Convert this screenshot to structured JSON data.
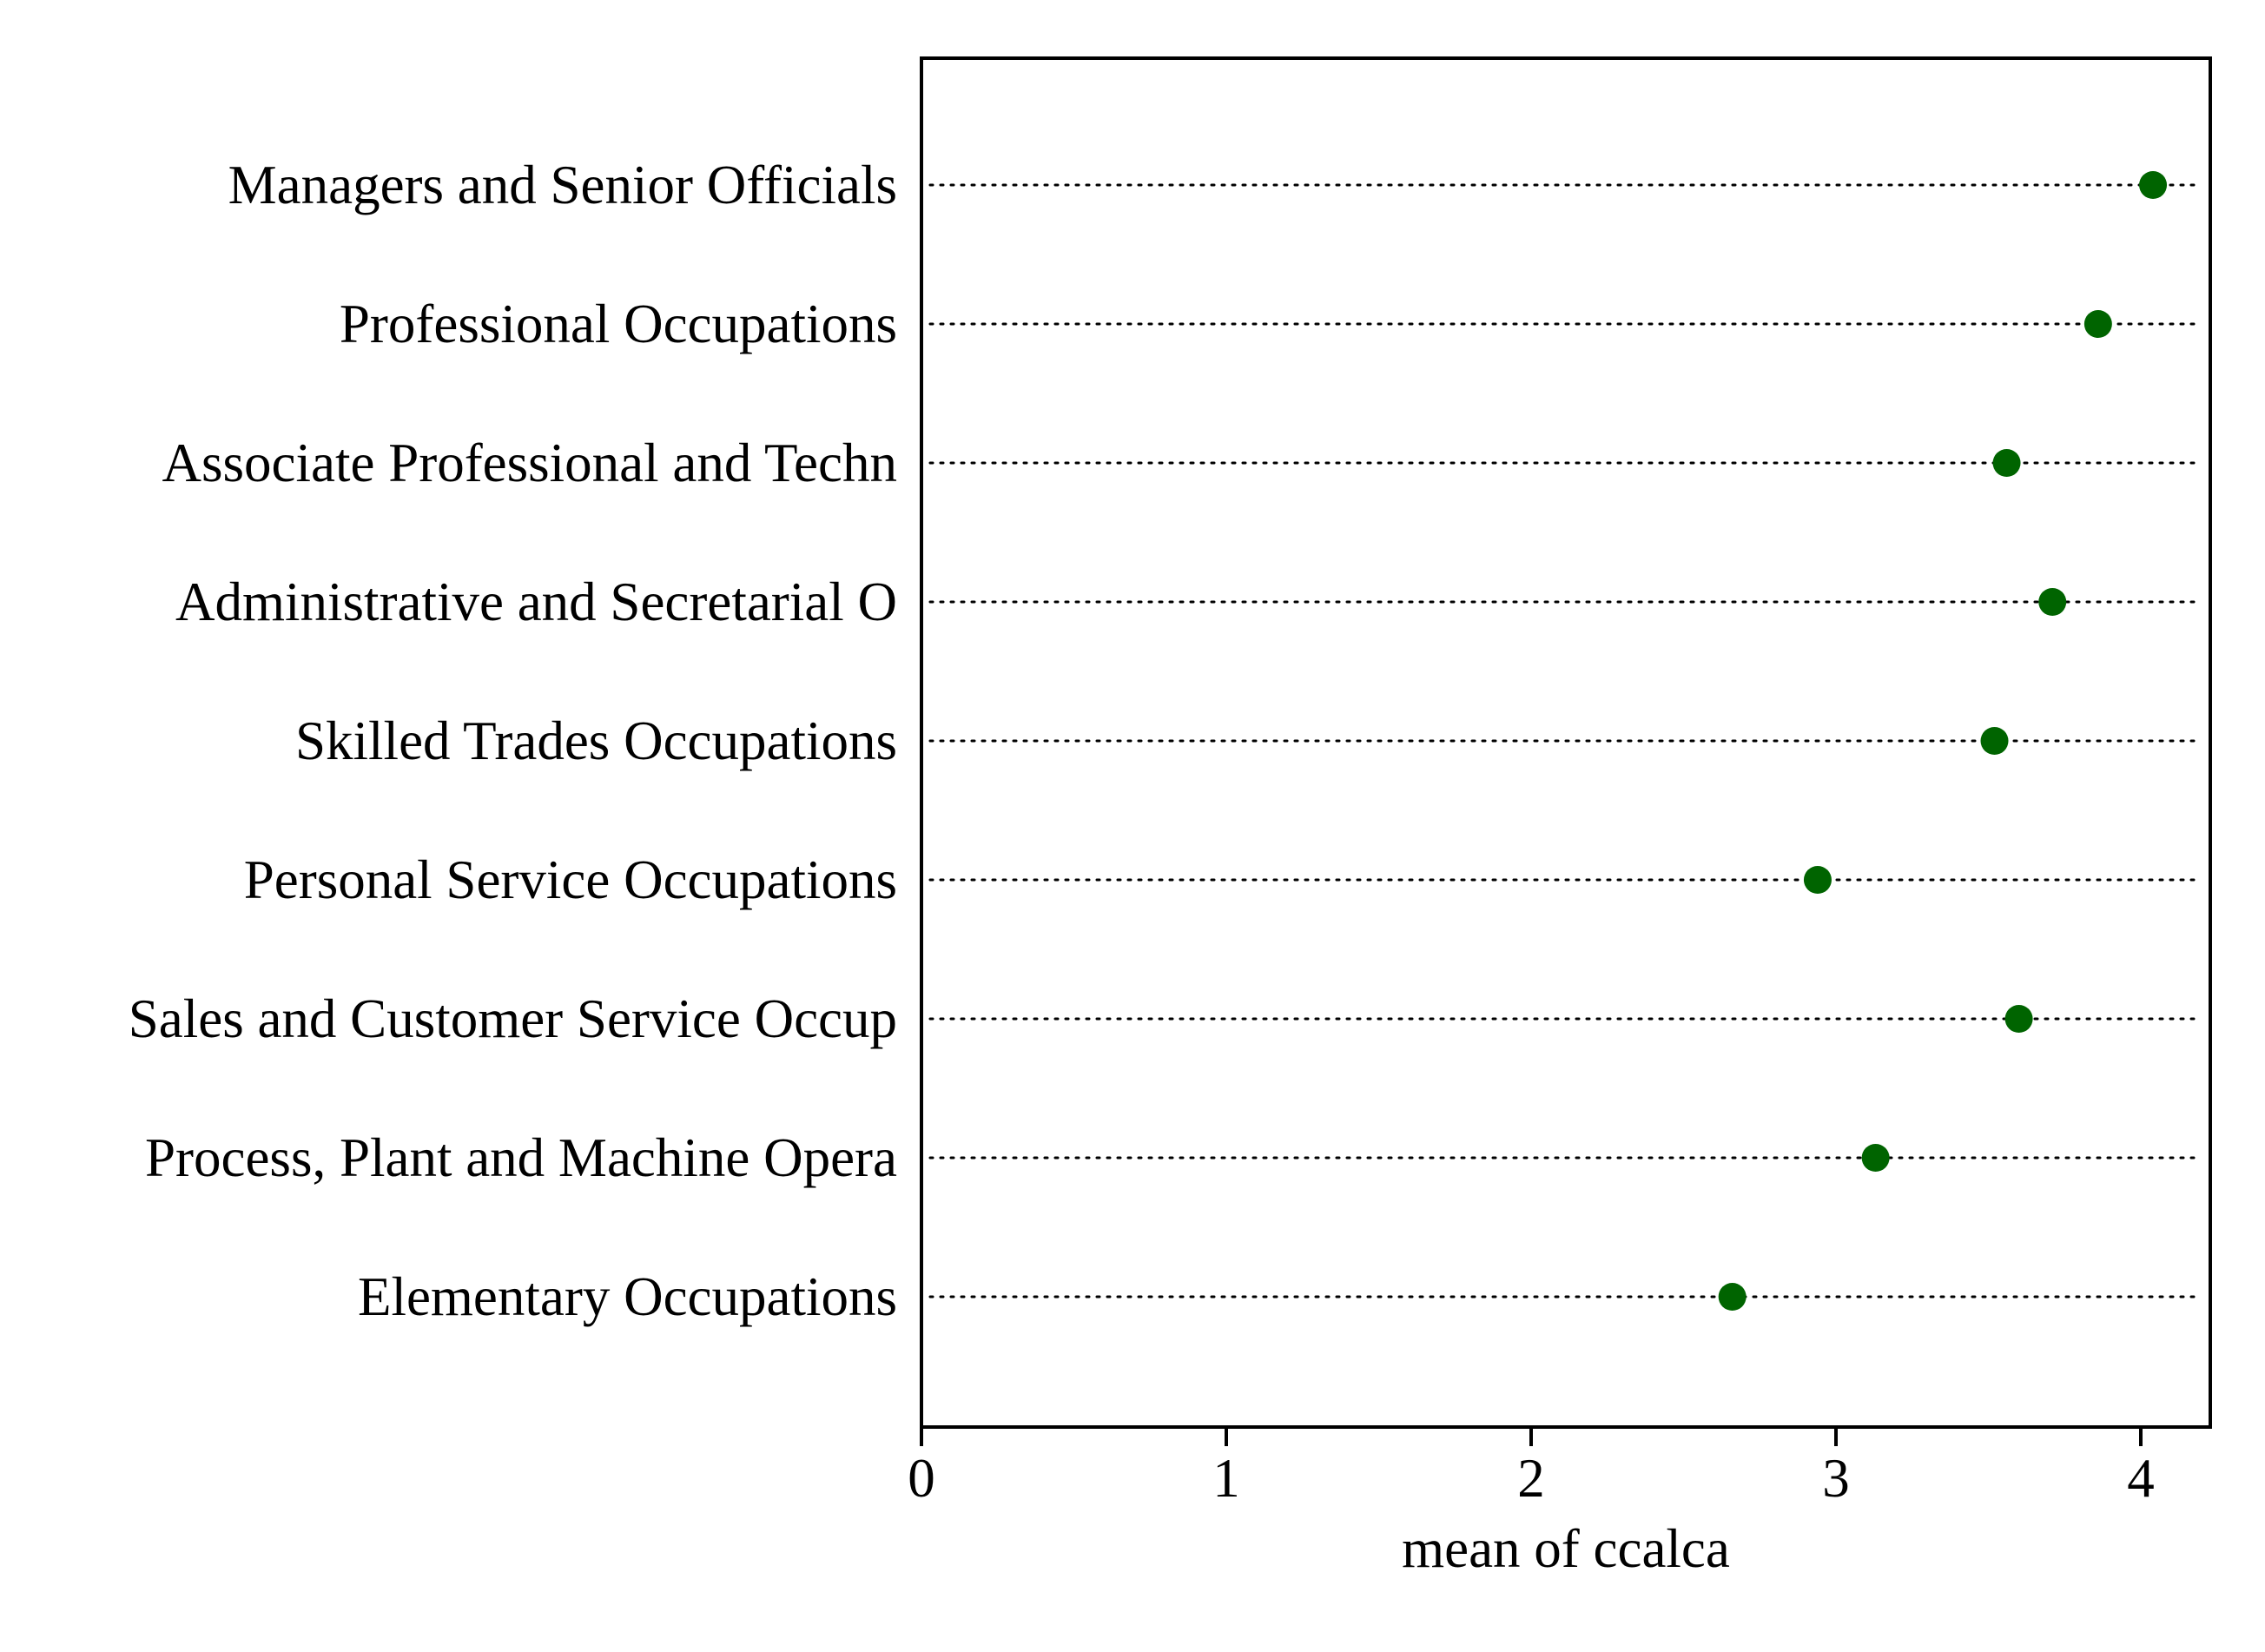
{
  "chart_data": {
    "type": "dot",
    "title": "",
    "xlabel": "mean of ccalca",
    "ylabel": "",
    "xlim": [
      0,
      4.23
    ],
    "xticks": [
      "0",
      "1",
      "2",
      "3",
      "4"
    ],
    "grid": false,
    "legend": "none",
    "categories": [
      "Managers and Senior Officials",
      "Professional Occupations",
      "Associate Professional and Techn",
      "Administrative and Secretarial O",
      "Skilled Trades Occupations",
      "Personal Service Occupations",
      "Sales and Customer Service Occup",
      "Process, Plant and Machine Opera",
      "Elementary Occupations"
    ],
    "values": [
      4.04,
      3.86,
      3.56,
      3.71,
      3.52,
      2.94,
      3.6,
      3.13,
      2.66
    ],
    "marker_color": "#006400",
    "line_style": "dotted"
  }
}
